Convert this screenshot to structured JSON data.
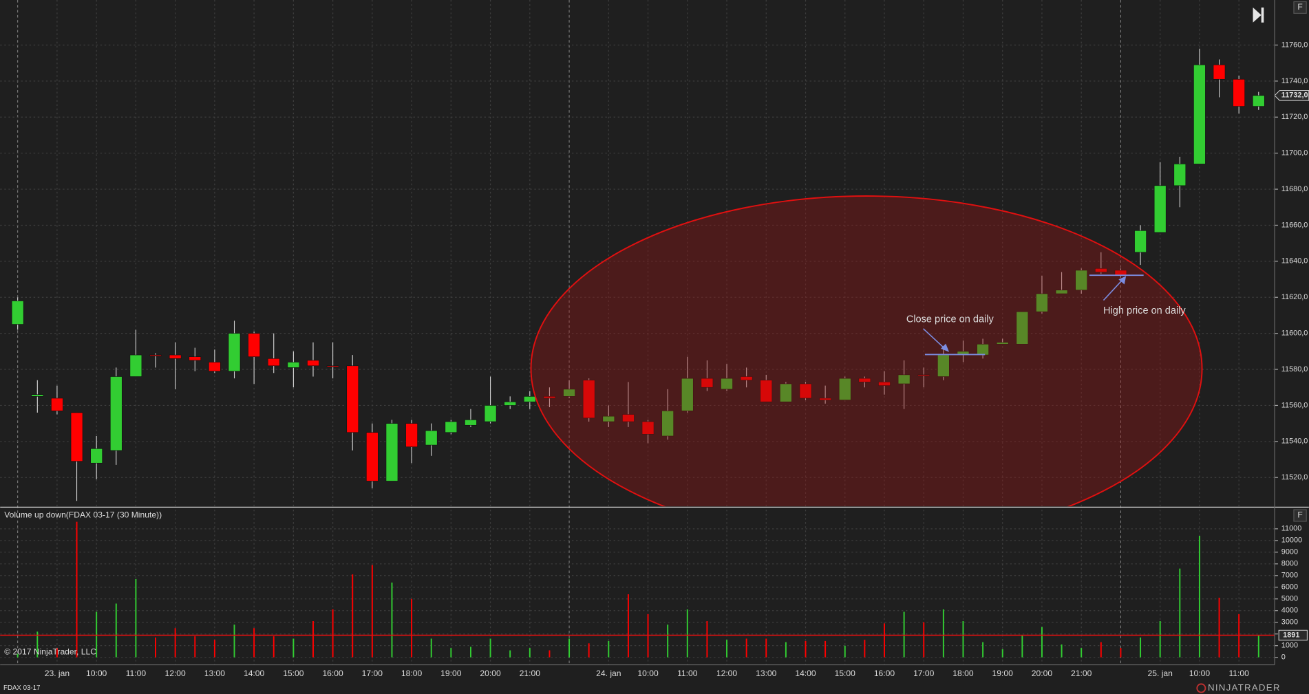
{
  "chart_data": [
    {
      "type": "candlestick",
      "open": [
        11605,
        11565,
        11564,
        11556,
        11528,
        11535,
        11576,
        11588,
        11588,
        11587,
        11584,
        11579,
        11600,
        11586,
        11581,
        11585,
        11582,
        11582,
        11545,
        11518,
        11550,
        11538,
        11545,
        11549,
        11551,
        11560,
        11562,
        11565,
        11565,
        11574,
        11551,
        11555,
        11551,
        11543,
        11557,
        11575,
        11569,
        11576,
        11574,
        11562,
        11572,
        11564,
        11563,
        11575,
        11573,
        11572,
        11577,
        11576,
        11588,
        11588,
        11594,
        11594,
        11612,
        11622,
        11624,
        11636,
        11635,
        11645,
        11656,
        11682,
        11694,
        11749,
        11741,
        11726
      ],
      "high": [
        11620,
        11574,
        11571,
        11556,
        11543,
        11581,
        11602,
        11589,
        11595,
        11592,
        11591,
        11607,
        11601,
        11600,
        11590,
        11595,
        11595,
        11588,
        11550,
        11552,
        11552,
        11550,
        11552,
        11558,
        11576,
        11565,
        11568,
        11570,
        11574,
        11575,
        11560,
        11573,
        11552,
        11569,
        11587,
        11585,
        11583,
        11581,
        11577,
        11573,
        11573,
        11571,
        11576,
        11576,
        11579,
        11585,
        11581,
        11593,
        11596,
        11597,
        11597,
        11612,
        11632,
        11634,
        11636,
        11645,
        11636,
        11660,
        11695,
        11698,
        11758,
        11752,
        11743,
        11734
      ],
      "low": [
        11602,
        11556,
        11555,
        11507,
        11519,
        11527,
        11576,
        11581,
        11569,
        11579,
        11578,
        11575,
        11572,
        11578,
        11570,
        11576,
        11575,
        11535,
        11514,
        11518,
        11528,
        11532,
        11544,
        11548,
        11550,
        11558,
        11558,
        11559,
        11564,
        11551,
        11548,
        11548,
        11539,
        11541,
        11556,
        11568,
        11568,
        11570,
        11562,
        11562,
        11563,
        11561,
        11563,
        11570,
        11566,
        11558,
        11570,
        11574,
        11584,
        11586,
        11594,
        11594,
        11611,
        11622,
        11622,
        11633,
        11631,
        11638,
        11656,
        11670,
        11694,
        11731,
        11722,
        11724
      ],
      "close": [
        11618,
        11566,
        11557,
        11529,
        11536,
        11576,
        11588,
        11587.5,
        11586,
        11585,
        11579,
        11600,
        11587,
        11582,
        11584,
        11582,
        11581.5,
        11545,
        11518,
        11550,
        11537,
        11546,
        11551,
        11552,
        11560,
        11562,
        11565,
        11564,
        11569,
        11553,
        11554,
        11551,
        11544,
        11557,
        11575,
        11570,
        11575,
        11574,
        11562,
        11572,
        11564,
        11563,
        11575,
        11573,
        11571,
        11577,
        11576.5,
        11588,
        11590,
        11594,
        11595,
        11612,
        11622,
        11624,
        11635,
        11634,
        11632,
        11657,
        11682,
        11694,
        11749,
        11741,
        11726,
        11732
      ],
      "up_color": "#32cd32",
      "down_color": "#ff0000",
      "ylim": [
        11504,
        11785
      ],
      "yticks": [
        {
          "value": 11520,
          "label": "11520,0"
        },
        {
          "value": 11540,
          "label": "11540,0"
        },
        {
          "value": 11560,
          "label": "11560,0"
        },
        {
          "value": 11580,
          "label": "11580,0"
        },
        {
          "value": 11600,
          "label": "11600,0"
        },
        {
          "value": 11620,
          "label": "11620,0"
        },
        {
          "value": 11640,
          "label": "11640,0"
        },
        {
          "value": 11660,
          "label": "11660,0"
        },
        {
          "value": 11680,
          "label": "11680,0"
        },
        {
          "value": 11700,
          "label": "11700,0"
        },
        {
          "value": 11720,
          "label": "11720,0"
        },
        {
          "value": 11740,
          "label": "11740,0"
        },
        {
          "value": 11760,
          "label": "11760,0"
        }
      ],
      "grid": true,
      "last_price": {
        "value": 11732,
        "label": "11732,0"
      },
      "annotations": [
        "Close price on daily",
        "High price on daily"
      ]
    },
    {
      "type": "bar",
      "title": "Volume up down(FDAX 03-17 (30 Minute))",
      "categories": [
        null,
        null,
        "23. jan",
        null,
        "10:00",
        null,
        "11:00",
        null,
        "12:00",
        null,
        "13:00",
        null,
        "14:00",
        null,
        "15:00",
        null,
        "16:00",
        null,
        "17:00",
        null,
        "18:00",
        null,
        "19:00",
        null,
        "20:00",
        null,
        "21:00",
        null,
        null,
        null,
        "24. jan",
        null,
        "10:00",
        null,
        "11:00",
        null,
        "12:00",
        null,
        "13:00",
        null,
        "14:00",
        null,
        "15:00",
        null,
        "16:00",
        null,
        "17:00",
        null,
        "18:00",
        null,
        "19:00",
        null,
        "20:00",
        null,
        "21:00",
        null,
        null,
        null,
        "25. jan",
        null,
        "10:00",
        null,
        "11:00",
        null
      ],
      "values": [
        300,
        2200,
        800,
        11600,
        3900,
        4600,
        6700,
        1700,
        2500,
        1800,
        1500,
        2800,
        2500,
        1800,
        1600,
        3100,
        4100,
        7100,
        7900,
        6400,
        5000,
        1600,
        800,
        900,
        1600,
        600,
        800,
        600,
        1600,
        1200,
        1400,
        5400,
        3700,
        2800,
        4100,
        3100,
        1500,
        1600,
        1600,
        1300,
        1400,
        1400,
        1000,
        1500,
        2900,
        3900,
        3000,
        4100,
        3100,
        1300,
        700,
        1900,
        2600,
        1100,
        800,
        1300,
        800,
        1700,
        3100,
        7600,
        10400,
        5100,
        3700,
        1891
      ],
      "ylim": [
        -640,
        12640
      ],
      "yticks": [
        0,
        1000,
        2000,
        3000,
        4000,
        5000,
        6000,
        7000,
        8000,
        9000,
        10000,
        11000
      ],
      "grid": true
    }
  ],
  "copyright": "© 2017 NinjaTrader, LLC",
  "instrument": "FDAX 03-17",
  "brand": "NINJATRADER",
  "panel_buttons": [
    "F",
    "F"
  ]
}
